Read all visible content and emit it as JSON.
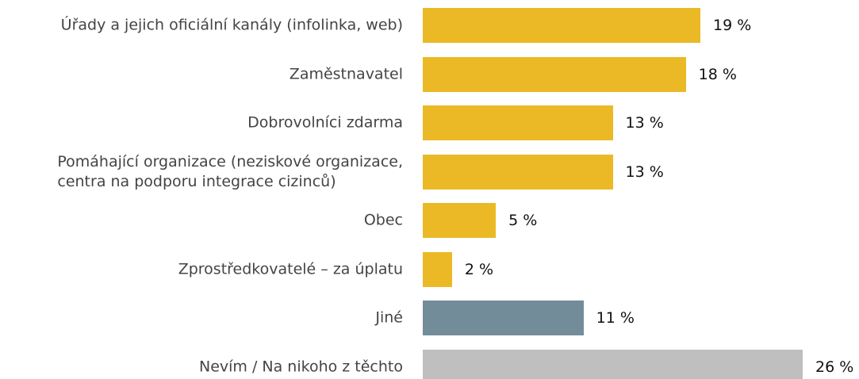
{
  "chart_data": {
    "type": "bar",
    "orientation": "horizontal",
    "categories": [
      "Úřady a jejich oficiální kanály (infolinka, web)",
      "Zaměstnavatel",
      "Dobrovolníci zdarma",
      "Pomáhající organizace (neziskové organizace,\ncentra na podporu integrace cizinců)",
      "Obec",
      "Zprostředkovatelé – za úplatu",
      "Jiné",
      "Nevím / Na nikoho z těchto"
    ],
    "values": [
      19,
      18,
      13,
      13,
      5,
      2,
      11,
      26
    ],
    "value_labels": [
      "19 %",
      "18 %",
      "13 %",
      "13 %",
      "5 %",
      "2 %",
      "11 %",
      "26 %"
    ],
    "colors": [
      "#ebb925",
      "#ebb925",
      "#ebb925",
      "#ebb925",
      "#ebb925",
      "#ebb925",
      "#738c99",
      "#bfbfbf"
    ]
  }
}
